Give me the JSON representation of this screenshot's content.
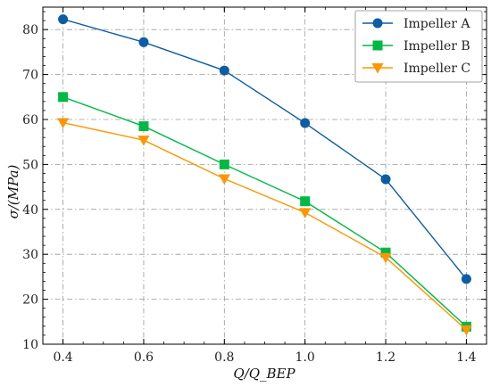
{
  "chart_data": {
    "type": "line",
    "x": [
      0.4,
      0.6,
      0.8,
      1.0,
      1.2,
      1.4
    ],
    "xlabel": "Q/Q_BEP",
    "ylabel": "σ/(MPa)",
    "xlim": [
      0.35,
      1.45
    ],
    "ylim": [
      10,
      85
    ],
    "xticks": [
      "0.4",
      "0.6",
      "0.8",
      "1.0",
      "1.2",
      "1.4"
    ],
    "yticks": [
      "10",
      "20",
      "30",
      "40",
      "50",
      "60",
      "70",
      "80"
    ],
    "grid": true,
    "legend_position": "top-right",
    "series": [
      {
        "name": "Impeller A",
        "color": "#0c5da5",
        "marker": "circle",
        "values": [
          82.3,
          77.2,
          70.9,
          59.2,
          46.7,
          24.5
        ]
      },
      {
        "name": "Impeller B",
        "color": "#00b945",
        "marker": "square",
        "values": [
          65.0,
          58.5,
          50.0,
          41.8,
          30.4,
          13.9
        ]
      },
      {
        "name": "Impeller C",
        "color": "#ff9500",
        "marker": "triangle-down",
        "values": [
          59.3,
          55.4,
          46.8,
          39.3,
          29.3,
          13.2
        ]
      }
    ]
  }
}
